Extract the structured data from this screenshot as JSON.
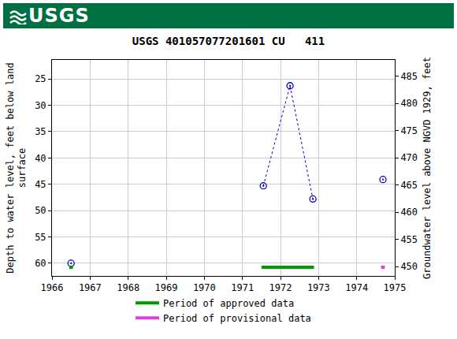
{
  "chart_data": {
    "type": "scatter",
    "banner": "USGS",
    "title": "USGS 401057077201601 CU   411",
    "ylabel": [
      "Depth to water level, feet below land",
      "surface"
    ],
    "y2label": "Groundwater level above NGVD 1929, feet",
    "x": [
      1966.5,
      null,
      1971.55,
      1972.25,
      1972.85,
      null,
      1974.69
    ],
    "values": [
      60,
      null,
      45.3,
      26.3,
      47.8,
      null,
      44.1
    ],
    "color": "#0000cc",
    "marker": "circle-open-dot",
    "line_style": "dot",
    "xlim": [
      1966,
      1975
    ],
    "xticks": [
      1966,
      1967,
      1968,
      1969,
      1970,
      1971,
      1972,
      1973,
      1974,
      1975
    ],
    "ylim": [
      62.4,
      21.4
    ],
    "yticks": [
      25,
      30,
      35,
      40,
      45,
      50,
      55,
      60
    ],
    "y2lim": [
      448.3,
      488
    ],
    "y2ticks": [
      450,
      455,
      460,
      465,
      470,
      475,
      480,
      485
    ],
    "grid": true,
    "legend": "bottom",
    "periods": [
      {
        "name": "Period of approved data",
        "color": "#009900",
        "spans": [
          [
            1966.45,
            1966.55
          ],
          [
            1971.5,
            1972.88
          ]
        ]
      },
      {
        "name": "Period of provisional data",
        "color": "#e040e0",
        "spans": [
          [
            1974.64,
            1974.74
          ]
        ]
      }
    ]
  }
}
